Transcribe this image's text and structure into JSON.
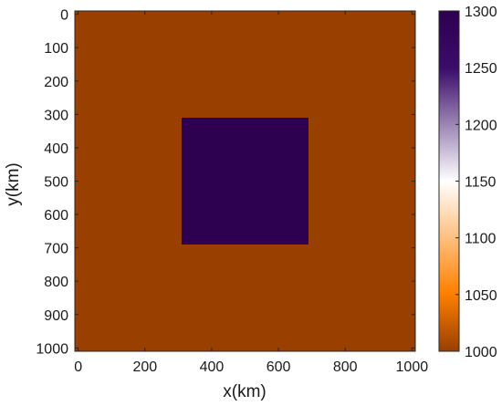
{
  "chart_data": {
    "type": "heatmap",
    "title": "",
    "xlabel": "x(km)",
    "ylabel": "y(km)",
    "xlim": [
      -10,
      1010
    ],
    "ylim": [
      -10,
      1010
    ],
    "y_axis_direction": "down",
    "x_ticks": [
      0,
      200,
      400,
      600,
      800,
      1000
    ],
    "y_ticks": [
      0,
      100,
      200,
      300,
      400,
      500,
      600,
      700,
      800,
      900,
      1000
    ],
    "background_value": 1000,
    "anomaly": {
      "x_range": [
        310,
        690
      ],
      "y_range": [
        310,
        690
      ],
      "value": 1300
    },
    "colorbar": {
      "min": 1000,
      "max": 1300,
      "ticks": [
        1000,
        1050,
        1100,
        1150,
        1200,
        1250,
        1300
      ],
      "colormap": [
        "#993f00",
        "#ff8000",
        "#ffffff",
        "#3b0d6b",
        "#2d0050"
      ]
    },
    "colors": {
      "low": "#993f00",
      "high": "#2d0050"
    }
  }
}
